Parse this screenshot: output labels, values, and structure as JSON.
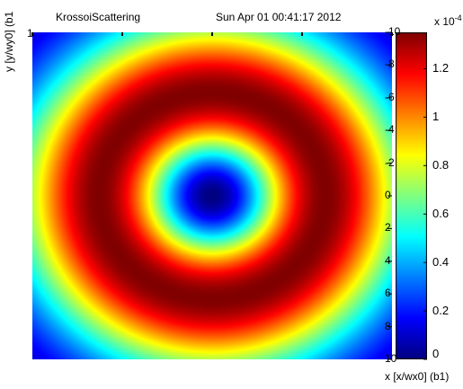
{
  "header": {
    "title": "KrossoiScattering",
    "timestamp": "Sun Apr 01 00:41:17 2012"
  },
  "chart_data": {
    "type": "heatmap",
    "title": "KrossoiScattering",
    "xlabel": "x [x/wx0] (b1)",
    "ylabel": "y [y/wy0] (b1",
    "xlim": [
      -10,
      10
    ],
    "ylim": [
      -10,
      10
    ],
    "y_tick_labels": [
      "-10",
      "-8",
      "-6",
      "-4",
      "-2",
      "0",
      "2",
      "4",
      "6",
      "8",
      "10"
    ],
    "y_tick_values": [
      -10,
      -8,
      -6,
      -4,
      -2,
      0,
      2,
      4,
      6,
      8,
      10
    ],
    "corner_label_left": "1",
    "colorbar": {
      "label_exponent": "x 10",
      "exponent": "-4",
      "range": [
        0,
        0.000135
      ],
      "tick_labels": [
        "0",
        "0.2",
        "0.4",
        "0.6",
        "0.8",
        "1",
        "1.2"
      ],
      "tick_values": [
        0,
        0.2,
        0.4,
        0.6,
        0.8,
        1.0,
        1.2
      ],
      "colormap": "jet"
    },
    "field": {
      "description_function": "intensity ring: zero at center, peak near radius ~6.3 in axis units",
      "peak_value": 0.000135,
      "peak_radius": 6.3,
      "center_value": 0.0
    },
    "grid": false
  }
}
